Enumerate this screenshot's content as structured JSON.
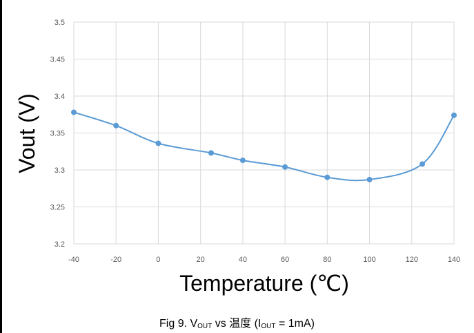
{
  "chart_data": {
    "type": "line",
    "xlabel": "Temperature (℃)",
    "ylabel": "Vout (V)",
    "xlim": [
      -40,
      140
    ],
    "ylim": [
      3.2,
      3.5
    ],
    "x_ticks": [
      "-40",
      "-20",
      "0",
      "20",
      "40",
      "60",
      "80",
      "100",
      "120",
      "140"
    ],
    "y_ticks": [
      "3.2",
      "3.25",
      "3.3",
      "3.35",
      "3.4",
      "3.45",
      "3.5"
    ],
    "grid": true,
    "smooth": true,
    "series": [
      {
        "x": [
          -40,
          -20,
          0,
          25,
          40,
          60,
          80,
          100,
          125,
          140
        ],
        "y": [
          3.378,
          3.36,
          3.336,
          3.323,
          3.313,
          3.304,
          3.29,
          3.287,
          3.308,
          3.374
        ]
      }
    ],
    "colors": {
      "line": "#5b9bd5",
      "grid": "#d9d9d9"
    }
  },
  "caption": {
    "prefix": "Fig 9. V",
    "sub1": "OUT",
    "middle": " vs 温度 (I",
    "sub2": "OUT",
    "suffix": " = 1mA)"
  }
}
